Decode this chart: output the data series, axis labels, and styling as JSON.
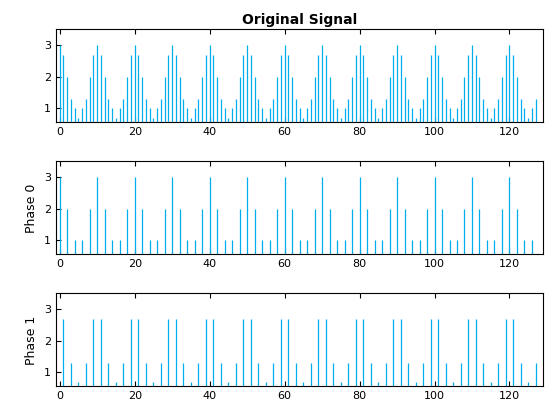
{
  "title": "Original Signal",
  "ylabel_phase0": "Phase 0",
  "ylabel_phase1": "Phase 1",
  "xlim": [
    -1,
    129
  ],
  "ylim": [
    0.55,
    3.5
  ],
  "yticks": [
    1,
    2,
    3
  ],
  "xticks": [
    0,
    20,
    40,
    60,
    80,
    100,
    120
  ],
  "line_color": "#00ADEF",
  "bg_color": "#FFFFFF",
  "title_fontsize": 10,
  "label_fontsize": 9,
  "linewidth": 0.9
}
